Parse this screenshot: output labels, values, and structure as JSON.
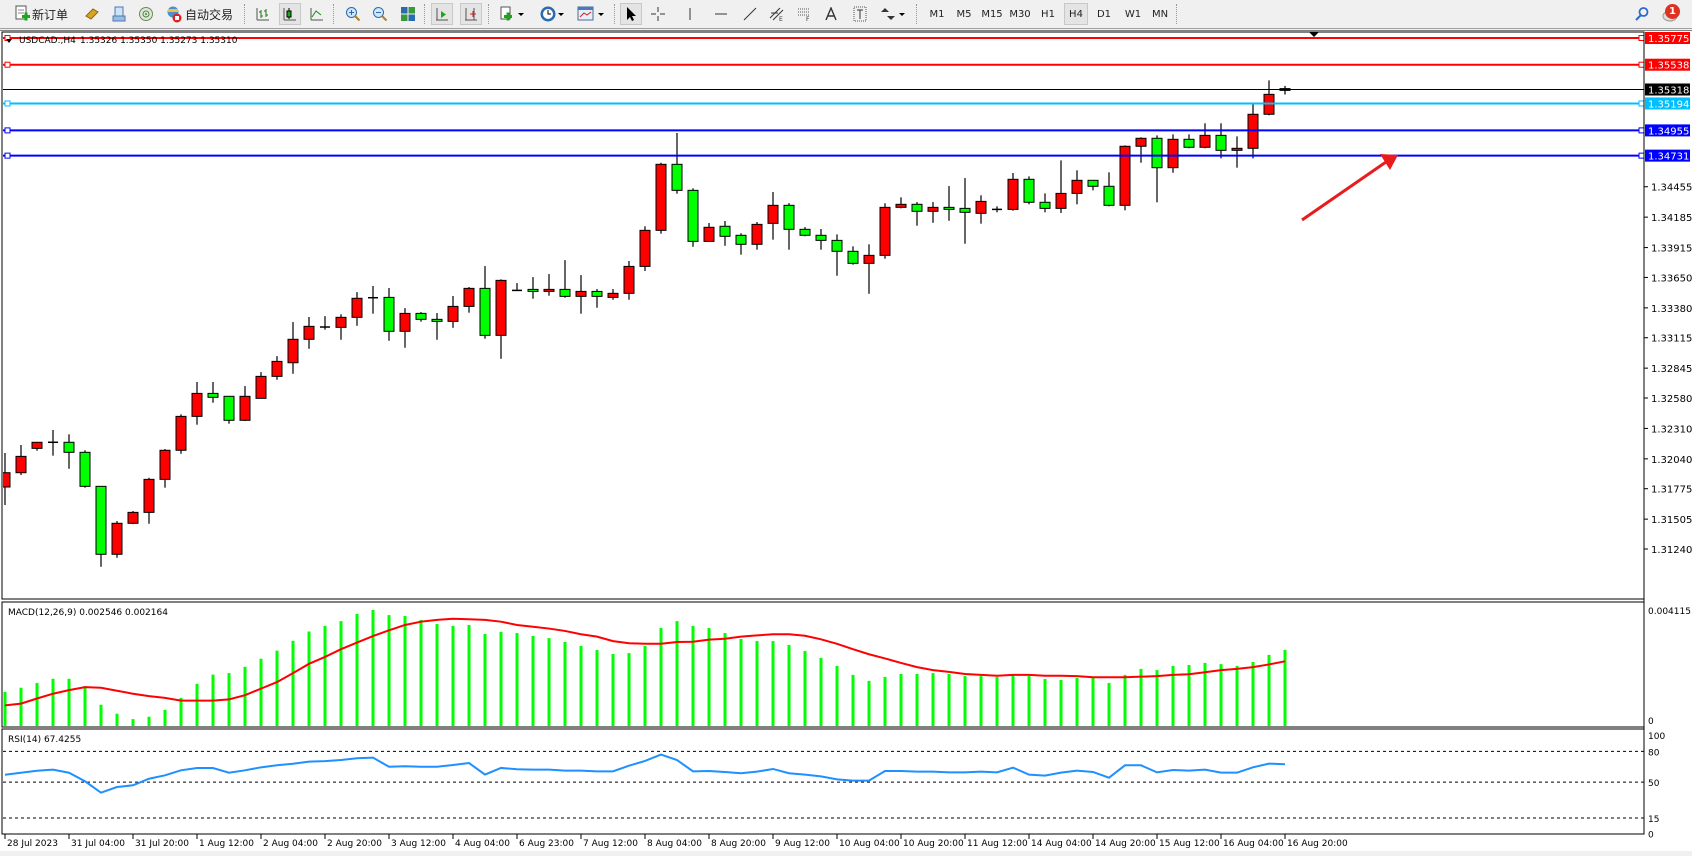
{
  "toolbar": {
    "new_order_label": "新订单",
    "auto_trading_label": "自动交易",
    "timeframes": [
      "M1",
      "M5",
      "M15",
      "M30",
      "H1",
      "H4",
      "D1",
      "W1",
      "MN"
    ],
    "active_timeframe": "H4",
    "notification_count": "1"
  },
  "chart": {
    "symbol": "USDCAD.,H4",
    "ohlc_readout": "1.35326 1.35350 1.35273 1.35310",
    "colors": {
      "bull": "#ff0000",
      "bear": "#00ff00",
      "outline": "#000000",
      "macd_hist": "#00ff00",
      "macd_signal": "#ff0000",
      "rsi": "#1e90ff",
      "background": "#ffffff"
    },
    "price_axis_ticks": [
      "1.34455",
      "1.34185",
      "1.33915",
      "1.33650",
      "1.33380",
      "1.33115",
      "1.32845",
      "1.32580",
      "1.32310",
      "1.32040",
      "1.31775",
      "1.31505",
      "1.31240"
    ],
    "horizontal_lines": [
      {
        "price": "1.35775",
        "color": "#ff0000"
      },
      {
        "price": "1.35538",
        "color": "#ff0000"
      },
      {
        "price": "1.35194",
        "color": "#00bfff"
      },
      {
        "price": "1.34955",
        "color": "#0000ff"
      },
      {
        "price": "1.34731",
        "color": "#0000ff"
      }
    ],
    "current_price": {
      "price": "1.35318",
      "color": "#000000"
    },
    "arrow": {
      "color": "#e81c1c",
      "from": {
        "bar": "16 Aug 20:00+1",
        "price": 1.3417
      },
      "to": {
        "price": 1.3473
      }
    },
    "time_labels": [
      "28 Jul 2023",
      "31 Jul 04:00",
      "31 Jul 20:00",
      "1 Aug 12:00",
      "2 Aug 04:00",
      "2 Aug 20:00",
      "3 Aug 12:00",
      "4 Aug 04:00",
      "6 Aug 23:00",
      "7 Aug 12:00",
      "8 Aug 04:00",
      "8 Aug 20:00",
      "9 Aug 12:00",
      "10 Aug 04:00",
      "10 Aug 20:00",
      "11 Aug 12:00",
      "14 Aug 04:00",
      "14 Aug 20:00",
      "15 Aug 12:00",
      "16 Aug 04:00",
      "16 Aug 20:00"
    ]
  },
  "macd": {
    "label": "MACD(12,26,9) 0.002546 0.002164",
    "axis_max": "0.004115",
    "axis_zero": "0"
  },
  "rsi": {
    "label": "RSI(14) 67.4255",
    "levels": [
      "100",
      "80",
      "50",
      "15",
      "0"
    ]
  },
  "chart_data": {
    "type": "candlestick",
    "timeframe": "H4",
    "ohlc_order": [
      "open",
      "high",
      "low",
      "close"
    ],
    "candles": [
      [
        1.3179,
        1.32092,
        1.3163,
        1.31917
      ],
      [
        1.31917,
        1.32163,
        1.31896,
        1.32062
      ],
      [
        1.32133,
        1.32189,
        1.32112,
        1.32187
      ],
      [
        1.32187,
        1.32296,
        1.32068,
        1.32184
      ],
      [
        1.32187,
        1.32258,
        1.31952,
        1.32098
      ],
      [
        1.32098,
        1.32116,
        1.31784,
        1.31796
      ],
      [
        1.31796,
        1.31796,
        1.31082,
        1.31193
      ],
      [
        1.31193,
        1.31488,
        1.31162,
        1.31468
      ],
      [
        1.31468,
        1.31577,
        1.31461,
        1.31565
      ],
      [
        1.31565,
        1.31872,
        1.31464,
        1.31858
      ],
      [
        1.31858,
        1.32127,
        1.31784,
        1.32116
      ],
      [
        1.32116,
        1.32435,
        1.32085,
        1.32417
      ],
      [
        1.32417,
        1.32722,
        1.32343,
        1.32621
      ],
      [
        1.32621,
        1.32722,
        1.32538,
        1.32586
      ],
      [
        1.32595,
        1.32597,
        1.32352,
        1.32382
      ],
      [
        1.32382,
        1.32686,
        1.32376,
        1.32595
      ],
      [
        1.32577,
        1.3281,
        1.32589,
        1.32772
      ],
      [
        1.32772,
        1.32952,
        1.32742,
        1.32905
      ],
      [
        1.32893,
        1.33254,
        1.32795,
        1.33101
      ],
      [
        1.33101,
        1.33299,
        1.33017,
        1.33216
      ],
      [
        1.33207,
        1.33307,
        1.33186,
        1.3321
      ],
      [
        1.33207,
        1.33323,
        1.33097,
        1.33296
      ],
      [
        1.33296,
        1.3352,
        1.33221,
        1.33465
      ],
      [
        1.33465,
        1.33574,
        1.33328,
        1.3347
      ],
      [
        1.33473,
        1.33556,
        1.33088,
        1.33172
      ],
      [
        1.33172,
        1.33378,
        1.33026,
        1.33331
      ],
      [
        1.33331,
        1.33343,
        1.33257,
        1.33278
      ],
      [
        1.33278,
        1.33334,
        1.33097,
        1.3326
      ],
      [
        1.3326,
        1.33485,
        1.33203,
        1.33393
      ],
      [
        1.33393,
        1.33565,
        1.33337,
        1.33553
      ],
      [
        1.33553,
        1.33751,
        1.33106,
        1.33136
      ],
      [
        1.33136,
        1.33633,
        1.32928,
        1.33624
      ],
      [
        1.33535,
        1.336,
        1.33529,
        1.33533
      ],
      [
        1.33544,
        1.33653,
        1.33461,
        1.33526
      ],
      [
        1.33526,
        1.3368,
        1.33488,
        1.33544
      ],
      [
        1.33544,
        1.33804,
        1.3347,
        1.33482
      ],
      [
        1.33482,
        1.33671,
        1.33328,
        1.33526
      ],
      [
        1.33526,
        1.33547,
        1.33381,
        1.33482
      ],
      [
        1.33473,
        1.33547,
        1.33452,
        1.33509
      ],
      [
        1.33509,
        1.33796,
        1.33452,
        1.33748
      ],
      [
        1.33748,
        1.34104,
        1.33707,
        1.34068
      ],
      [
        1.34068,
        1.34668,
        1.34038,
        1.34654
      ],
      [
        1.34654,
        1.34932,
        1.34393,
        1.34423
      ],
      [
        1.34423,
        1.34441,
        1.33922,
        1.3397
      ],
      [
        1.3397,
        1.34133,
        1.3397,
        1.34095
      ],
      [
        1.34104,
        1.34151,
        1.33931,
        1.34015
      ],
      [
        1.34024,
        1.34042,
        1.33852,
        1.33944
      ],
      [
        1.33944,
        1.34142,
        1.33896,
        1.34121
      ],
      [
        1.3413,
        1.34408,
        1.33985,
        1.3429
      ],
      [
        1.3429,
        1.3431,
        1.33896,
        1.34077
      ],
      [
        1.34077,
        1.34097,
        1.34015,
        1.34024
      ],
      [
        1.34024,
        1.3408,
        1.33896,
        1.33979
      ],
      [
        1.33979,
        1.34032,
        1.33665,
        1.33882
      ],
      [
        1.33882,
        1.33926,
        1.33763,
        1.33775
      ],
      [
        1.33775,
        1.33944,
        1.33505,
        1.33846
      ],
      [
        1.33846,
        1.34308,
        1.33816,
        1.34272
      ],
      [
        1.34272,
        1.34361,
        1.34263,
        1.34299
      ],
      [
        1.34299,
        1.34319,
        1.34109,
        1.34237
      ],
      [
        1.34237,
        1.34319,
        1.34135,
        1.34272
      ],
      [
        1.34272,
        1.34461,
        1.34153,
        1.34254
      ],
      [
        1.34263,
        1.34532,
        1.33949,
        1.34228
      ],
      [
        1.34219,
        1.34379,
        1.34127,
        1.34325
      ],
      [
        1.34248,
        1.34281,
        1.34228,
        1.34254
      ],
      [
        1.34254,
        1.34577,
        1.34242,
        1.34521
      ],
      [
        1.34521,
        1.34547,
        1.34299,
        1.34317
      ],
      [
        1.34317,
        1.34396,
        1.34228,
        1.34263
      ],
      [
        1.34263,
        1.34689,
        1.34222,
        1.34396
      ],
      [
        1.34396,
        1.34601,
        1.34299,
        1.34512
      ],
      [
        1.34512,
        1.34514,
        1.34423,
        1.34459
      ],
      [
        1.34459,
        1.34583,
        1.34281,
        1.3429
      ],
      [
        1.3429,
        1.34822,
        1.34246,
        1.34814
      ],
      [
        1.34814,
        1.34894,
        1.34668,
        1.34885
      ],
      [
        1.34885,
        1.34911,
        1.34317,
        1.34624
      ],
      [
        1.34624,
        1.3492,
        1.34579,
        1.34876
      ],
      [
        1.34876,
        1.3492,
        1.34796,
        1.34805
      ],
      [
        1.34805,
        1.35018,
        1.34796,
        1.34911
      ],
      [
        1.34911,
        1.35018,
        1.34707,
        1.34778
      ],
      [
        1.34778,
        1.34902,
        1.34624,
        1.34796
      ],
      [
        1.34796,
        1.35195,
        1.34707,
        1.35098
      ],
      [
        1.35098,
        1.35399,
        1.35089,
        1.35275
      ],
      [
        1.35326,
        1.3535,
        1.35273,
        1.3531
      ]
    ],
    "price_range": [
      1.3112,
      1.359
    ],
    "macd_hist": [
      0.00114,
      0.00128,
      0.00144,
      0.00158,
      0.00158,
      0.00133,
      0.00071,
      0.00041,
      0.00023,
      0.00031,
      0.00054,
      0.00094,
      0.00141,
      0.00172,
      0.00177,
      0.00198,
      0.00225,
      0.00252,
      0.00285,
      0.00316,
      0.00335,
      0.00351,
      0.00375,
      0.00388,
      0.00371,
      0.00368,
      0.00355,
      0.00341,
      0.00335,
      0.00338,
      0.00308,
      0.00315,
      0.00311,
      0.00301,
      0.00294,
      0.00281,
      0.00268,
      0.00254,
      0.00241,
      0.00244,
      0.00268,
      0.00328,
      0.00351,
      0.00335,
      0.00328,
      0.00311,
      0.00291,
      0.00284,
      0.00284,
      0.00271,
      0.00251,
      0.00228,
      0.00201,
      0.00171,
      0.00151,
      0.00164,
      0.00174,
      0.00174,
      0.00177,
      0.00174,
      0.00167,
      0.00167,
      0.00164,
      0.00174,
      0.00167,
      0.00157,
      0.00154,
      0.00161,
      0.00161,
      0.00144,
      0.00171,
      0.00191,
      0.00187,
      0.00201,
      0.00204,
      0.00211,
      0.00207,
      0.00201,
      0.00214,
      0.00238,
      0.002546
    ],
    "macd_signal": [
      0.00069,
      0.00075,
      0.00092,
      0.00108,
      0.0012,
      0.0013,
      0.00128,
      0.00118,
      0.00108,
      0.001,
      0.00094,
      0.00085,
      0.00085,
      0.00085,
      0.00089,
      0.00103,
      0.00125,
      0.00147,
      0.00177,
      0.00208,
      0.00231,
      0.00257,
      0.00279,
      0.00301,
      0.0032,
      0.00338,
      0.00349,
      0.00355,
      0.00359,
      0.00357,
      0.00355,
      0.00349,
      0.00338,
      0.00332,
      0.00326,
      0.00318,
      0.00307,
      0.00299,
      0.00284,
      0.00277,
      0.00275,
      0.00275,
      0.00281,
      0.00282,
      0.00289,
      0.00292,
      0.00299,
      0.00303,
      0.00307,
      0.00307,
      0.00302,
      0.0029,
      0.00275,
      0.00257,
      0.0024,
      0.00226,
      0.00211,
      0.00197,
      0.00187,
      0.00181,
      0.00174,
      0.00171,
      0.00168,
      0.00171,
      0.00171,
      0.00168,
      0.00168,
      0.00167,
      0.00163,
      0.00163,
      0.00163,
      0.00165,
      0.00167,
      0.00171,
      0.00173,
      0.0018,
      0.00187,
      0.00191,
      0.00197,
      0.00206,
      0.002164
    ],
    "macd_range": [
      0,
      0.004115
    ],
    "rsi": [
      57.2,
      59.1,
      61.1,
      62.1,
      59.1,
      50.8,
      39.7,
      45.2,
      46.9,
      53.3,
      56.6,
      61.5,
      63.7,
      63.7,
      59.1,
      61.5,
      64.4,
      66.4,
      67.9,
      69.9,
      70.5,
      71.5,
      73.2,
      73.8,
      65.0,
      65.4,
      65.0,
      65.0,
      66.7,
      68.6,
      57.3,
      63.8,
      62.5,
      62.1,
      62.1,
      61.2,
      61.2,
      60.5,
      60.5,
      66.0,
      70.6,
      76.8,
      71.5,
      60.5,
      60.8,
      59.9,
      58.6,
      60.2,
      62.8,
      58.6,
      57.3,
      55.6,
      52.7,
      51.4,
      51.4,
      60.8,
      60.8,
      60.2,
      60.2,
      59.5,
      59.5,
      60.2,
      59.5,
      64.1,
      57.3,
      56.3,
      59.2,
      61.2,
      59.9,
      54.3,
      66.4,
      66.4,
      59.5,
      61.8,
      61.2,
      62.1,
      59.2,
      59.2,
      64.4,
      68.0,
      67.4255
    ],
    "rsi_range": [
      0,
      100
    ],
    "rsi_levels": [
      80,
      50,
      15
    ],
    "grid": false
  }
}
